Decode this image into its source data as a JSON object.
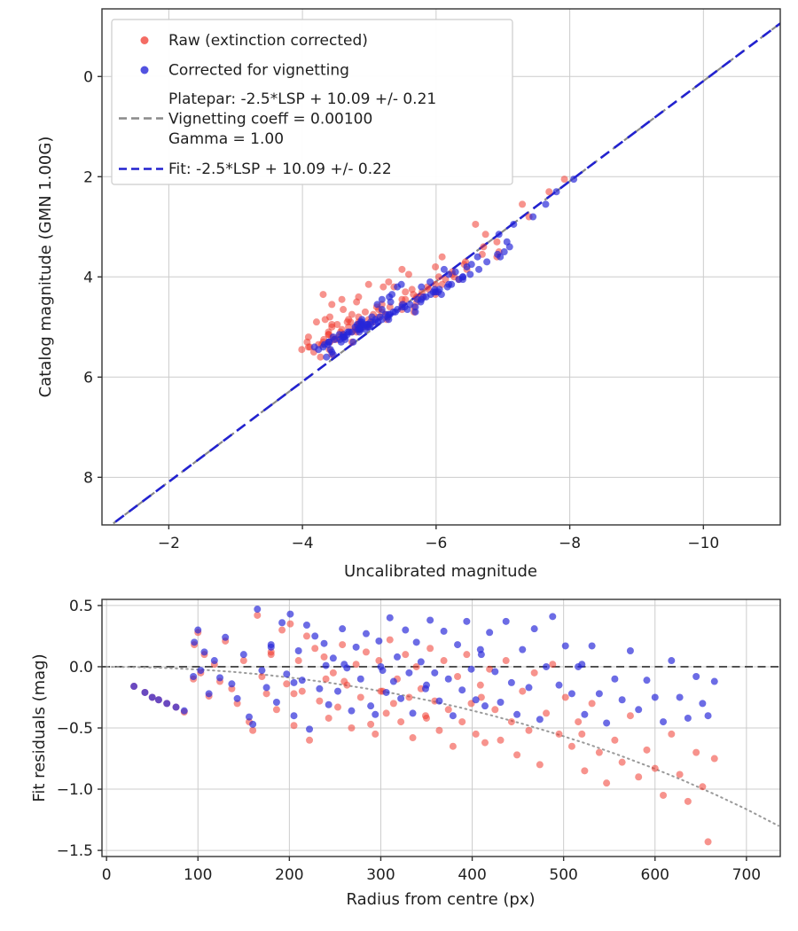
{
  "page": {
    "background": "#ffffff"
  },
  "colors": {
    "raw": "#f03b30",
    "corrected": "#2727d8",
    "fit_line": "#2222cf",
    "platepar_line": "#8a8a8a",
    "zero_line": "#4a4a4a",
    "model_curve": "#9a9a9a",
    "grid": "#cccccc",
    "axis": "#333333",
    "text": "#1f1f1f"
  },
  "chart_data": {
    "charts": [
      {
        "type": "scatter",
        "xlabel": "Uncalibrated magnitude",
        "ylabel": "Catalog magnitude (GMN 1.00G)",
        "x_ticks": [
          -2,
          -4,
          -6,
          -8,
          -10
        ],
        "x_tick_labels": [
          "−2",
          "−4",
          "−6",
          "−8",
          "−10"
        ],
        "y_ticks": [
          0,
          2,
          4,
          6,
          8
        ],
        "y_tick_labels": [
          "0",
          "2",
          "4",
          "6",
          "8"
        ],
        "xlim": [
          -1.0,
          -11.15
        ],
        "ylim": [
          8.95,
          -1.35
        ],
        "x_axis_inverted": true,
        "y_axis_inverted": true,
        "grid": true,
        "legend": {
          "raw": "Raw (extinction corrected)",
          "corrected": "Corrected for vignetting",
          "platepar_line1": "Platepar: -2.5*LSP + 10.09 +/- 0.21",
          "platepar_line2": "Vignetting coeff = 0.00100",
          "platepar_line3": "Gamma = 1.00",
          "fit": "Fit: -2.5*LSP + 10.09 +/- 0.22"
        },
        "fit_line": {
          "slope": 1,
          "intercept": 10.09
        },
        "platepar_line": {
          "slope": 1,
          "intercept": 10.09
        }
      },
      {
        "type": "scatter",
        "xlabel": "Radius from centre (px)",
        "ylabel": "Fit residuals (mag)",
        "x_ticks": [
          0,
          100,
          200,
          300,
          400,
          500,
          600,
          700
        ],
        "x_tick_labels": [
          "0",
          "100",
          "200",
          "300",
          "400",
          "500",
          "600",
          "700"
        ],
        "y_ticks": [
          0.5,
          0.0,
          -0.5,
          -1.0,
          -1.5
        ],
        "y_tick_labels": [
          "0.5",
          "0.0",
          "−0.5",
          "−1.0",
          "−1.5"
        ],
        "xlim": [
          -5,
          737
        ],
        "ylim": [
          -1.55,
          0.55
        ],
        "grid": true,
        "zero_line": 0.0,
        "model_curve": {
          "r": [
            0,
            35,
            70,
            105,
            140,
            175,
            210,
            245,
            280,
            315,
            350,
            385,
            420,
            455,
            490,
            525,
            560,
            595,
            630,
            665,
            700,
            735
          ],
          "residual": [
            0,
            -0.003,
            -0.011,
            -0.024,
            -0.043,
            -0.067,
            -0.097,
            -0.132,
            -0.173,
            -0.219,
            -0.272,
            -0.33,
            -0.395,
            -0.466,
            -0.544,
            -0.628,
            -0.72,
            -0.819,
            -0.926,
            -1.041,
            -1.164,
            -1.299
          ]
        }
      }
    ],
    "stars_fields": [
      "catalog_mag",
      "radius_px",
      "raw_residual_mag",
      "corrected_residual_mag"
    ],
    "stars": [
      [
        4.95,
        30,
        -0.16,
        -0.16
      ],
      [
        5.05,
        42,
        -0.21,
        -0.21
      ],
      [
        5.1,
        50,
        -0.25,
        -0.25
      ],
      [
        5.2,
        57,
        -0.27,
        -0.27
      ],
      [
        5.0,
        66,
        -0.3,
        -0.3
      ],
      [
        5.15,
        76,
        -0.33,
        -0.33
      ],
      [
        5.25,
        85,
        -0.37,
        -0.36
      ],
      [
        4.6,
        96,
        0.18,
        0.2
      ],
      [
        4.7,
        100,
        0.28,
        0.3
      ],
      [
        5.3,
        103,
        -0.05,
        -0.03
      ],
      [
        4.4,
        107,
        0.1,
        0.12
      ],
      [
        5.45,
        112,
        -0.24,
        -0.22
      ],
      [
        4.85,
        118,
        0.02,
        0.05
      ],
      [
        5.0,
        124,
        -0.12,
        -0.09
      ],
      [
        4.3,
        130,
        0.21,
        0.24
      ],
      [
        5.1,
        137,
        -0.18,
        -0.14
      ],
      [
        4.95,
        143,
        -0.3,
        -0.26
      ],
      [
        3.9,
        150,
        0.05,
        0.1
      ],
      [
        5.35,
        156,
        -0.45,
        -0.41
      ],
      [
        4.2,
        160,
        -0.52,
        -0.47
      ],
      [
        3.6,
        165,
        0.42,
        0.47
      ],
      [
        4.75,
        170,
        -0.08,
        -0.03
      ],
      [
        5.05,
        175,
        -0.22,
        -0.17
      ],
      [
        4.5,
        180,
        0.12,
        0.18
      ],
      [
        5.2,
        186,
        -0.35,
        -0.29
      ],
      [
        4.05,
        192,
        0.3,
        0.36
      ],
      [
        4.9,
        197,
        -0.14,
        -0.06
      ],
      [
        3.5,
        201,
        0.35,
        0.43
      ],
      [
        5.3,
        205,
        -0.48,
        -0.4
      ],
      [
        4.65,
        210,
        0.05,
        0.13
      ],
      [
        5.0,
        214,
        -0.2,
        -0.11
      ],
      [
        4.35,
        219,
        0.25,
        0.34
      ],
      [
        5.4,
        222,
        -0.6,
        -0.51
      ],
      [
        4.15,
        228,
        0.15,
        0.25
      ],
      [
        4.95,
        233,
        -0.28,
        -0.18
      ],
      [
        3.75,
        238,
        0.08,
        0.19
      ],
      [
        5.1,
        243,
        -0.42,
        -0.31
      ],
      [
        4.55,
        248,
        -0.05,
        0.07
      ],
      [
        5.25,
        253,
        -0.33,
        -0.2
      ],
      [
        4.0,
        258,
        0.18,
        0.31
      ],
      [
        4.8,
        263,
        -0.15,
        -0.01
      ],
      [
        5.35,
        268,
        -0.5,
        -0.36
      ],
      [
        4.4,
        273,
        0.02,
        0.16
      ],
      [
        5.05,
        278,
        -0.25,
        -0.1
      ],
      [
        3.3,
        284,
        0.12,
        0.27
      ],
      [
        4.9,
        289,
        -0.47,
        -0.32
      ],
      [
        5.15,
        294,
        -0.55,
        -0.39
      ],
      [
        4.25,
        298,
        0.05,
        0.21
      ],
      [
        4.7,
        302,
        -0.2,
        -0.03
      ],
      [
        5.3,
        306,
        -0.38,
        -0.21
      ],
      [
        3.85,
        310,
        0.22,
        0.4
      ],
      [
        4.95,
        314,
        -0.3,
        -0.12
      ],
      [
        4.45,
        318,
        -0.1,
        0.08
      ],
      [
        5.2,
        322,
        -0.45,
        -0.26
      ],
      [
        4.05,
        327,
        0.1,
        0.3
      ],
      [
        4.85,
        331,
        -0.25,
        -0.05
      ],
      [
        5.4,
        335,
        -0.58,
        -0.38
      ],
      [
        4.3,
        339,
        0.0,
        0.2
      ],
      [
        4.6,
        344,
        -0.18,
        0.04
      ],
      [
        5.0,
        349,
        -0.4,
        -0.18
      ],
      [
        3.55,
        354,
        0.15,
        0.38
      ],
      [
        4.75,
        359,
        -0.28,
        -0.05
      ],
      [
        5.25,
        364,
        -0.52,
        -0.28
      ],
      [
        4.15,
        369,
        0.05,
        0.29
      ],
      [
        4.9,
        374,
        -0.35,
        -0.1
      ],
      [
        5.45,
        379,
        -0.65,
        -0.4
      ],
      [
        4.35,
        384,
        -0.08,
        0.18
      ],
      [
        5.05,
        389,
        -0.45,
        -0.19
      ],
      [
        3.95,
        394,
        0.1,
        0.37
      ],
      [
        4.65,
        399,
        -0.3,
        -0.02
      ],
      [
        5.15,
        404,
        -0.55,
        -0.27
      ],
      [
        4.45,
        409,
        -0.15,
        0.14
      ],
      [
        4.95,
        414,
        -0.62,
        -0.32
      ],
      [
        4.2,
        419,
        -0.02,
        0.28
      ],
      [
        4.55,
        425,
        -0.35,
        -0.04
      ],
      [
        5.1,
        431,
        -0.6,
        -0.29
      ],
      [
        3.7,
        437,
        0.05,
        0.37
      ],
      [
        4.8,
        443,
        -0.45,
        -0.13
      ],
      [
        5.3,
        449,
        -0.72,
        -0.39
      ],
      [
        4.25,
        455,
        -0.2,
        0.14
      ],
      [
        4.9,
        462,
        -0.52,
        -0.17
      ],
      [
        4.0,
        468,
        -0.05,
        0.31
      ],
      [
        5.2,
        474,
        -0.8,
        -0.43
      ],
      [
        4.6,
        481,
        -0.38,
        0.0
      ],
      [
        3.4,
        488,
        0.02,
        0.41
      ],
      [
        4.85,
        495,
        -0.55,
        -0.15
      ],
      [
        4.3,
        502,
        -0.25,
        0.17
      ],
      [
        5.0,
        509,
        -0.65,
        -0.22
      ],
      [
        4.7,
        516,
        -0.45,
        0.0
      ],
      [
        4.4,
        523,
        -0.85,
        -0.39
      ],
      [
        3.8,
        531,
        -0.3,
        0.17
      ],
      [
        4.95,
        539,
        -0.7,
        -0.22
      ],
      [
        4.15,
        547,
        -0.95,
        -0.46
      ],
      [
        4.75,
        556,
        -0.6,
        -0.1
      ],
      [
        4.5,
        564,
        -0.78,
        -0.27
      ],
      [
        3.6,
        573,
        -0.4,
        0.13
      ],
      [
        4.85,
        582,
        -0.9,
        -0.35
      ],
      [
        4.2,
        591,
        -0.68,
        -0.11
      ],
      [
        4.65,
        600,
        -0.83,
        -0.25
      ],
      [
        4.45,
        609,
        -1.05,
        -0.45
      ],
      [
        3.95,
        618,
        -0.55,
        0.05
      ],
      [
        4.8,
        627,
        -0.88,
        -0.25
      ],
      [
        4.55,
        636,
        -1.1,
        -0.42
      ],
      [
        4.1,
        645,
        -0.7,
        -0.08
      ],
      [
        4.9,
        652,
        -0.98,
        -0.3
      ],
      [
        4.35,
        658,
        -1.43,
        -0.4
      ],
      [
        3.85,
        665,
        -0.75,
        -0.12
      ],
      [
        2.3,
        240,
        -0.1,
        0.01
      ],
      [
        2.55,
        410,
        -0.25,
        0.1
      ],
      [
        2.8,
        180,
        0.1,
        0.16
      ],
      [
        2.95,
        520,
        -0.55,
        0.02
      ],
      [
        3.15,
        300,
        -0.2,
        0.0
      ],
      [
        5.55,
        95,
        -0.1,
        -0.08
      ],
      [
        5.6,
        205,
        -0.22,
        -0.13
      ],
      [
        5.5,
        350,
        -0.42,
        -0.15
      ],
      [
        2.05,
        260,
        -0.12,
        0.02
      ]
    ]
  }
}
